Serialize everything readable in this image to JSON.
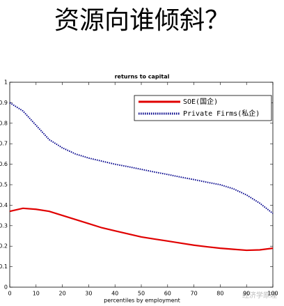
{
  "page_title": "资源向谁倾斜？",
  "watermark": "经济学原理",
  "chart_data": {
    "type": "line",
    "title": "returns to capital",
    "x_label": "percentiles by employment",
    "x": [
      0,
      5,
      10,
      15,
      20,
      25,
      30,
      35,
      40,
      45,
      50,
      55,
      60,
      65,
      70,
      75,
      80,
      85,
      90,
      95,
      100
    ],
    "series": [
      {
        "name": "SOE(国企)",
        "color": "#e00000",
        "line_style": "solid",
        "values": [
          0.37,
          0.385,
          0.38,
          0.37,
          0.35,
          0.33,
          0.31,
          0.29,
          0.275,
          0.26,
          0.245,
          0.235,
          0.225,
          0.215,
          0.205,
          0.197,
          0.19,
          0.185,
          0.18,
          0.182,
          0.19
        ]
      },
      {
        "name": "Private Firms(私企)",
        "color": "#00008b",
        "line_style": "dotted",
        "values": [
          0.9,
          0.86,
          0.79,
          0.72,
          0.68,
          0.65,
          0.63,
          0.615,
          0.6,
          0.588,
          0.575,
          0.562,
          0.55,
          0.537,
          0.525,
          0.512,
          0.5,
          0.48,
          0.45,
          0.41,
          0.36
        ]
      }
    ],
    "xlim": [
      0,
      100
    ],
    "xticks": [
      0,
      10,
      20,
      30,
      40,
      50,
      60,
      70,
      80,
      90,
      100
    ],
    "ylim": [
      0,
      1
    ],
    "yticks": [
      0,
      0.1,
      0.2,
      0.3,
      0.4,
      0.5,
      0.6,
      0.7,
      0.8,
      0.9,
      1
    ],
    "legend": "northeast",
    "grid": false
  }
}
